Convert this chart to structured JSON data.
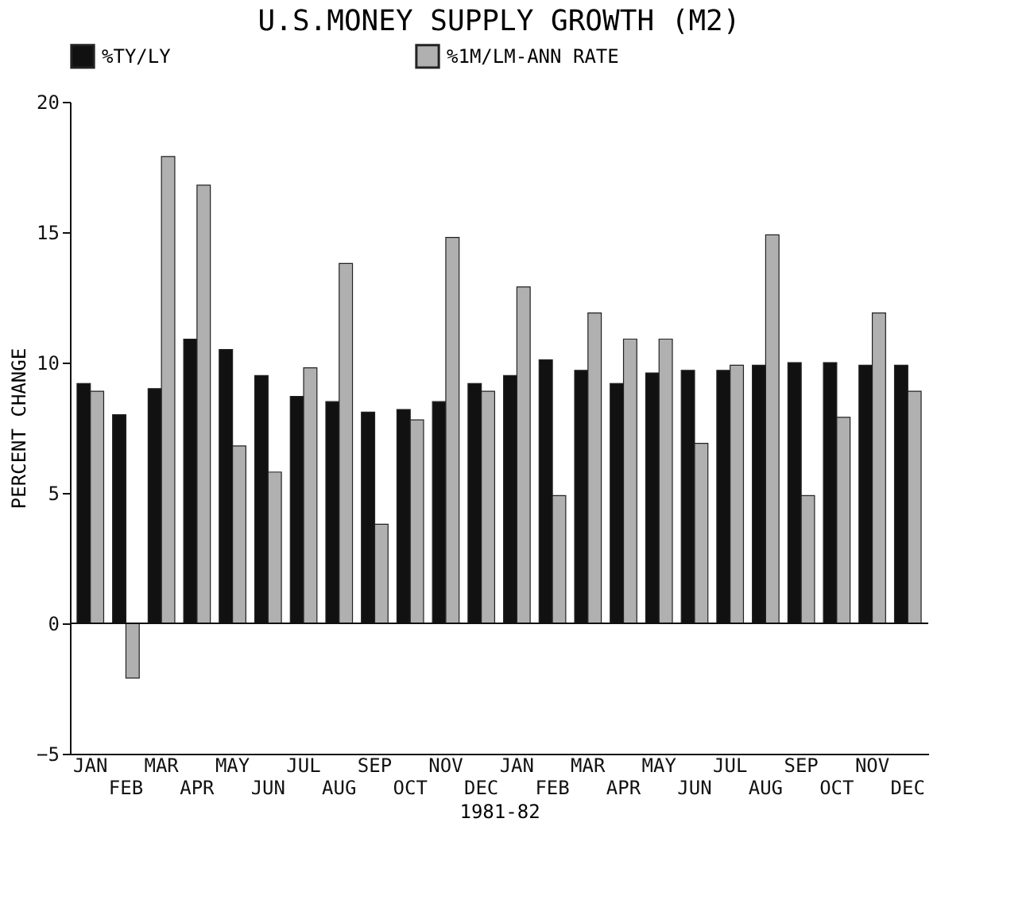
{
  "chart_data": {
    "type": "bar",
    "title": "U.S.MONEY SUPPLY GROWTH (M2)",
    "xlabel": "1981-82",
    "ylabel": "PERCENT CHANGE",
    "categories": [
      "JAN",
      "FEB",
      "MAR",
      "APR",
      "MAY",
      "JUN",
      "JUL",
      "AUG",
      "SEP",
      "OCT",
      "NOV",
      "DEC",
      "JAN",
      "FEB",
      "MAR",
      "APR",
      "MAY",
      "JUN",
      "JUL",
      "AUG",
      "SEP",
      "OCT",
      "NOV",
      "DEC"
    ],
    "series": [
      {
        "name": "%TY/LY",
        "color": "#111111",
        "values": [
          9.2,
          8.0,
          9.0,
          10.9,
          10.5,
          9.5,
          8.7,
          8.5,
          8.1,
          8.2,
          8.5,
          9.2,
          9.5,
          10.1,
          9.7,
          9.2,
          9.6,
          9.7,
          9.7,
          9.9,
          10.0,
          10.0,
          9.9,
          9.9
        ]
      },
      {
        "name": "%1M/LM-ANN RATE",
        "color": "#b0b0b0",
        "values": [
          8.9,
          -2.1,
          17.9,
          16.8,
          6.8,
          5.8,
          9.8,
          13.8,
          3.8,
          7.8,
          14.8,
          8.9,
          12.9,
          4.9,
          11.9,
          10.9,
          10.9,
          6.9,
          9.9,
          14.9,
          4.9,
          7.9,
          11.9,
          8.9
        ]
      }
    ],
    "ylim": [
      -5,
      20
    ],
    "yticks": [
      -5,
      0,
      5,
      10,
      15,
      20
    ],
    "ref_lines": [
      {
        "axis": "y",
        "value": 0,
        "color": "#111111"
      }
    ],
    "grid": false,
    "legend": "top"
  }
}
